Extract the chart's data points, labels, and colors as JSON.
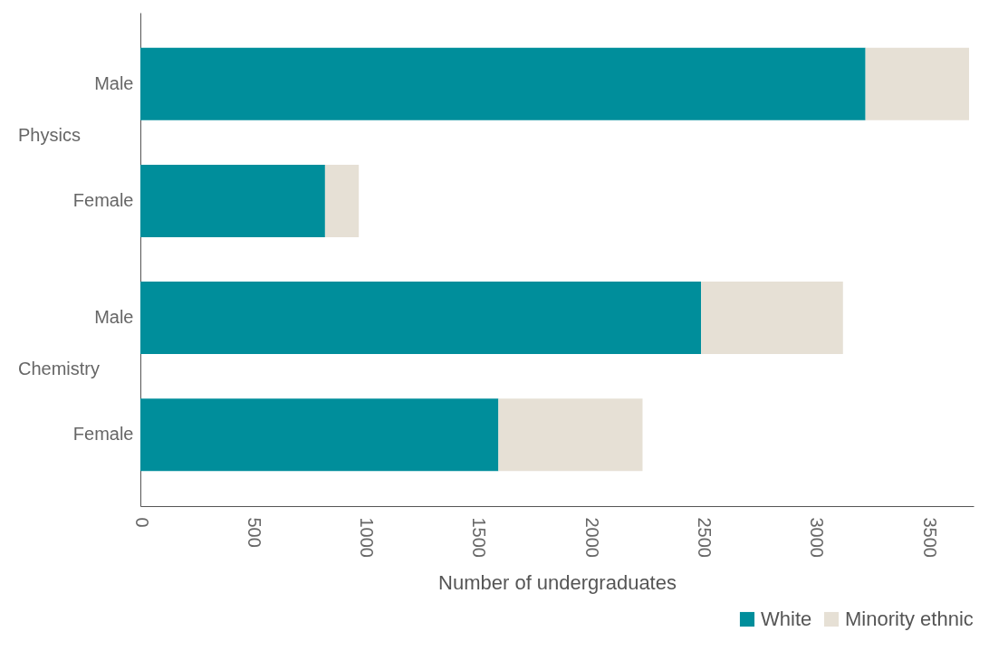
{
  "chart_data": {
    "type": "bar",
    "orientation": "horizontal",
    "stacked": true,
    "xlabel": "Number of undergraduates",
    "categories": [
      "Male",
      "Female",
      "Male",
      "Female"
    ],
    "series": [
      {
        "name": "White",
        "color": "#008e9b",
        "values": [
          3220,
          820,
          2490,
          1590
        ]
      },
      {
        "name": "Minority ethnic",
        "color": "#e6e0d5",
        "values": [
          460,
          150,
          630,
          640
        ]
      }
    ],
    "xlim": [
      0,
      3700
    ],
    "xticks": [
      0,
      500,
      1000,
      1500,
      2000,
      2500,
      3000,
      3500
    ],
    "annotations": [
      "Physics",
      "Chemistry"
    ],
    "grid": false,
    "legend": "bottom right"
  }
}
